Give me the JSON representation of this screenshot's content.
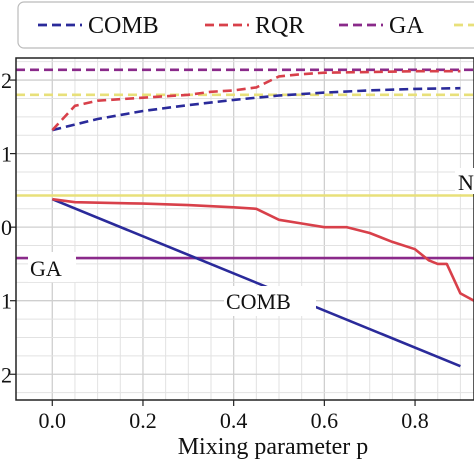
{
  "chart_data": {
    "type": "line",
    "xlabel": "Mixing parameter p",
    "ylabel": "",
    "xlim": [
      -0.08,
      0.93
    ],
    "ylim": [
      -2.35,
      2.3
    ],
    "x_ticks": [
      0.0,
      0.2,
      0.4,
      0.6,
      0.8
    ],
    "x_tick_labels": [
      "0.0",
      "0.2",
      "0.4",
      "0.6",
      "0.8"
    ],
    "y_ticks": [
      2,
      1,
      0,
      -1,
      -2
    ],
    "y_tick_labels": [
      "2",
      "1",
      "0",
      "1",
      "2"
    ],
    "grid": true,
    "legend": {
      "placement": "top",
      "entries": [
        {
          "label": "COMB",
          "color": "#2a2a9a",
          "dash": true
        },
        {
          "label": "RQR",
          "color": "#d8404a",
          "dash": true
        },
        {
          "label": "GA",
          "color": "#8a2a8a",
          "dash": true
        },
        {
          "label": "N",
          "color": "#e8e07a",
          "dash": true
        }
      ]
    },
    "annotations": [
      "GA",
      "COMB",
      "N"
    ],
    "series": [
      {
        "name": "COMB",
        "style": "dashed",
        "color": "#2a2a9a",
        "x": [
          0.0,
          0.1,
          0.2,
          0.3,
          0.4,
          0.5,
          0.6,
          0.7,
          0.8,
          0.9
        ],
        "y": [
          1.32,
          1.47,
          1.58,
          1.66,
          1.73,
          1.79,
          1.83,
          1.86,
          1.88,
          1.89
        ]
      },
      {
        "name": "RQR",
        "style": "dashed",
        "color": "#d8404a",
        "x": [
          0.0,
          0.05,
          0.1,
          0.2,
          0.3,
          0.35,
          0.4,
          0.45,
          0.5,
          0.55,
          0.6,
          0.7,
          0.8,
          0.9
        ],
        "y": [
          1.32,
          1.65,
          1.72,
          1.76,
          1.8,
          1.84,
          1.86,
          1.9,
          2.05,
          2.08,
          2.1,
          2.11,
          2.12,
          2.12
        ]
      },
      {
        "name": "GA",
        "style": "dashed",
        "color": "#8a2a8a",
        "x": [
          -0.08,
          0.93
        ],
        "y": [
          2.14,
          2.14
        ]
      },
      {
        "name": "N",
        "style": "dashed",
        "color": "#e8e07a",
        "x": [
          -0.08,
          0.93
        ],
        "y": [
          1.8,
          1.8
        ]
      },
      {
        "name": "COMB",
        "style": "solid",
        "color": "#2a2a9a",
        "x": [
          0.0,
          0.9
        ],
        "y": [
          0.38,
          -1.89
        ]
      },
      {
        "name": "RQR",
        "style": "solid",
        "color": "#d8404a",
        "x": [
          0.0,
          0.05,
          0.2,
          0.3,
          0.4,
          0.45,
          0.5,
          0.55,
          0.6,
          0.65,
          0.7,
          0.75,
          0.8,
          0.83,
          0.85,
          0.87,
          0.9,
          0.93
        ],
        "y": [
          0.38,
          0.34,
          0.32,
          0.3,
          0.27,
          0.25,
          0.1,
          0.05,
          0.0,
          0.0,
          -0.08,
          -0.2,
          -0.3,
          -0.45,
          -0.5,
          -0.5,
          -0.9,
          -1.0
        ]
      },
      {
        "name": "GA",
        "style": "solid",
        "color": "#8a2a8a",
        "x": [
          -0.08,
          0.93
        ],
        "y": [
          -0.42,
          -0.42
        ]
      },
      {
        "name": "N",
        "style": "solid",
        "color": "#e8e07a",
        "x": [
          -0.08,
          0.93
        ],
        "y": [
          0.43,
          0.43
        ]
      }
    ]
  }
}
